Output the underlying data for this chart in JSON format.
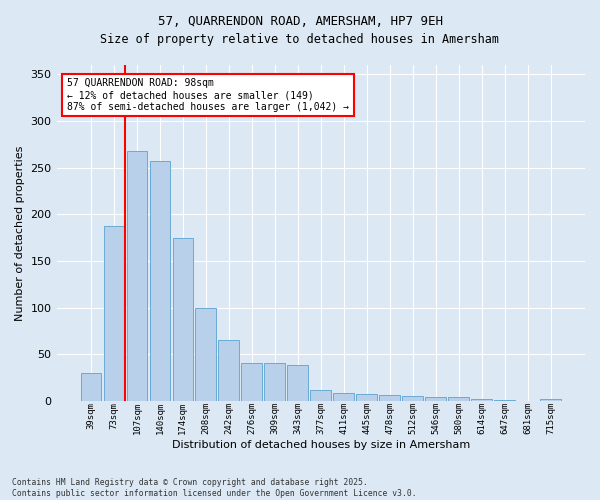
{
  "title_line1": "57, QUARRENDON ROAD, AMERSHAM, HP7 9EH",
  "title_line2": "Size of property relative to detached houses in Amersham",
  "xlabel": "Distribution of detached houses by size in Amersham",
  "ylabel": "Number of detached properties",
  "bar_labels": [
    "39sqm",
    "73sqm",
    "107sqm",
    "140sqm",
    "174sqm",
    "208sqm",
    "242sqm",
    "276sqm",
    "309sqm",
    "343sqm",
    "377sqm",
    "411sqm",
    "445sqm",
    "478sqm",
    "512sqm",
    "546sqm",
    "580sqm",
    "614sqm",
    "647sqm",
    "681sqm",
    "715sqm"
  ],
  "bar_values": [
    30,
    187,
    268,
    257,
    175,
    99,
    65,
    41,
    40,
    38,
    12,
    8,
    7,
    6,
    5,
    4,
    4,
    2,
    1,
    0,
    2
  ],
  "bar_color": "#b8d0ea",
  "bar_edge_color": "#6aaad4",
  "background_color": "#dce9f5",
  "grid_color": "#ffffff",
  "vline_color": "red",
  "annotation_text": "57 QUARRENDON ROAD: 98sqm\n← 12% of detached houses are smaller (149)\n87% of semi-detached houses are larger (1,042) →",
  "annotation_box_color": "white",
  "annotation_box_edge": "red",
  "ylim": [
    0,
    360
  ],
  "yticks": [
    0,
    50,
    100,
    150,
    200,
    250,
    300,
    350
  ],
  "footnote": "Contains HM Land Registry data © Crown copyright and database right 2025.\nContains public sector information licensed under the Open Government Licence v3.0."
}
